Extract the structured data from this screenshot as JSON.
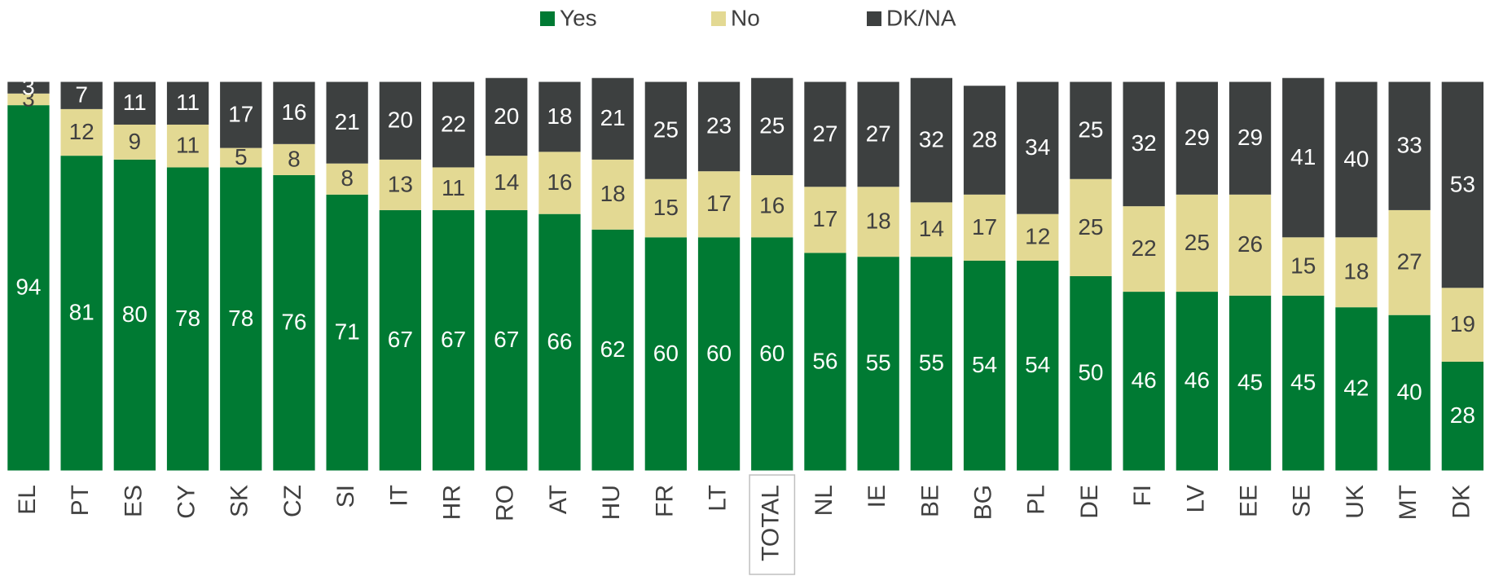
{
  "chart_data": {
    "type": "stacked_bar",
    "categories": [
      "EL",
      "PT",
      "ES",
      "CY",
      "SK",
      "CZ",
      "SI",
      "IT",
      "HR",
      "RO",
      "AT",
      "HU",
      "FR",
      "LT",
      "TOTAL",
      "NL",
      "IE",
      "BE",
      "BG",
      "PL",
      "DE",
      "FI",
      "LV",
      "EE",
      "SE",
      "UK",
      "MT",
      "DK"
    ],
    "highlighted": "TOTAL",
    "legend": "top",
    "series": [
      {
        "name": "Yes",
        "color": "#007a33",
        "label_color": "#ffffff",
        "values": [
          94,
          81,
          80,
          78,
          78,
          76,
          71,
          67,
          67,
          67,
          66,
          62,
          60,
          60,
          60,
          56,
          55,
          55,
          54,
          54,
          50,
          46,
          46,
          45,
          45,
          42,
          40,
          28
        ]
      },
      {
        "name": "No",
        "color": "#e3d993",
        "label_color": "#404040",
        "values": [
          3,
          12,
          9,
          11,
          5,
          8,
          8,
          13,
          11,
          14,
          16,
          18,
          15,
          17,
          16,
          17,
          18,
          14,
          17,
          12,
          25,
          22,
          25,
          26,
          15,
          18,
          27,
          19
        ]
      },
      {
        "name": "DK/NA",
        "color": "#3d4040",
        "label_color": "#ffffff",
        "values": [
          3,
          7,
          11,
          11,
          17,
          16,
          21,
          20,
          22,
          20,
          18,
          21,
          25,
          23,
          25,
          27,
          27,
          32,
          28,
          34,
          25,
          32,
          29,
          29,
          41,
          40,
          33,
          53
        ]
      }
    ]
  }
}
